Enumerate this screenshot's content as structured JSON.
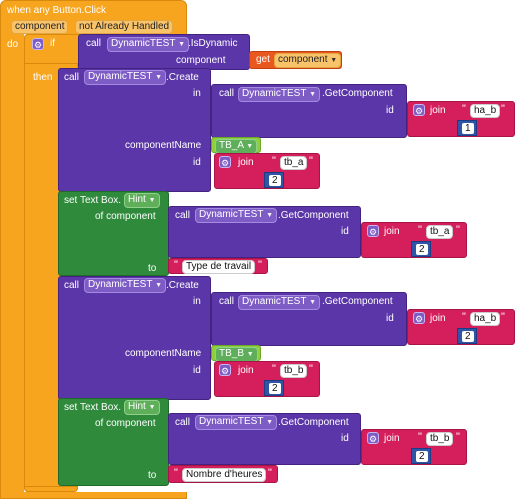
{
  "event": {
    "title": "when any Button.Click",
    "param1": "component",
    "param2": "not Already Handled",
    "do": "do"
  },
  "if_block": {
    "if": "if",
    "then": "then"
  },
  "is_dynamic": {
    "call": "call",
    "component": "DynamicTEST",
    "method": ".IsDynamic",
    "arg": "component"
  },
  "get_component": {
    "get": "get",
    "var": "component"
  },
  "create1": {
    "call": "call",
    "component": "DynamicTEST",
    "method": ".Create",
    "in": "in",
    "componentName": "componentName",
    "id": "id"
  },
  "getcomp1": {
    "call": "call",
    "component": "DynamicTEST",
    "method": ".GetComponent",
    "id": "id"
  },
  "join": "join",
  "text_ha_b": "ha_b",
  "text_tb_a": "tb_a",
  "text_tb_b": "tb_b",
  "num_1": "1",
  "num_2": "2",
  "tb_a_comp": "TB_A",
  "tb_b_comp": "TB_B",
  "setter1": {
    "set": "set Text Box.",
    "prop": "Hint",
    "of": "of component",
    "to": "to",
    "value": "Type de travail"
  },
  "setter2": {
    "set": "set Text Box.",
    "prop": "Hint",
    "of": "of component",
    "to": "to",
    "value": "Nombre d'heures"
  },
  "colors": {
    "event": "#f7a51e",
    "component": "#5b36a8",
    "text": "#d41f5c",
    "math": "#2e55a6",
    "setter": "#2f8a3c"
  }
}
